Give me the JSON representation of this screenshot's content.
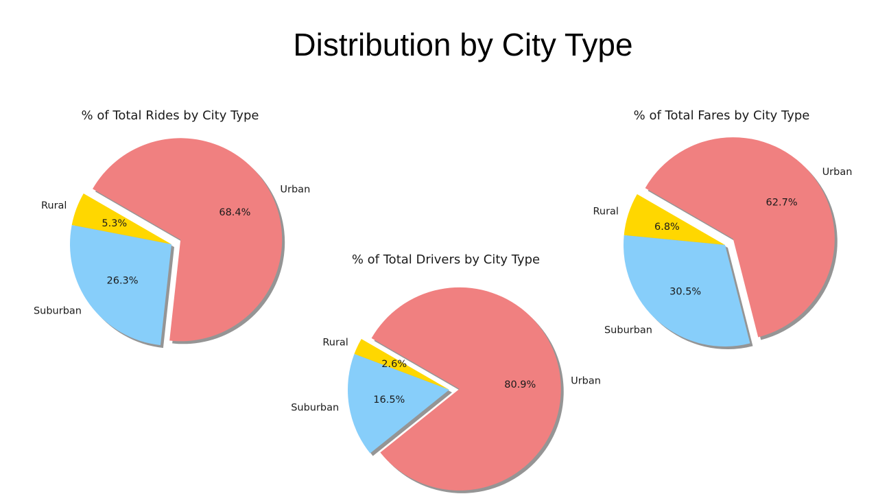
{
  "slide": {
    "title": "Distribution by City Type"
  },
  "colors": {
    "Urban": "#f08080",
    "Suburban": "#87cefa",
    "Rural": "#ffd700",
    "shadow": "#8a8a8a",
    "text": "#1a1a1a"
  },
  "chart_data": [
    {
      "type": "pie",
      "title": "% of Total Rides by City Type",
      "labels": [
        "Rural",
        "Suburban",
        "Urban"
      ],
      "values": [
        5.3,
        26.3,
        68.4
      ],
      "percent_labels": [
        "5.3%",
        "26.3%",
        "68.4%"
      ],
      "exploded": "Urban",
      "shadow": true
    },
    {
      "type": "pie",
      "title": "% of Total Drivers by City Type",
      "labels": [
        "Rural",
        "Suburban",
        "Urban"
      ],
      "values": [
        2.6,
        16.5,
        80.9
      ],
      "percent_labels": [
        "2.6%",
        "16.5%",
        "80.9%"
      ],
      "exploded": "Urban",
      "shadow": true
    },
    {
      "type": "pie",
      "title": "% of Total Fares by City Type",
      "labels": [
        "Rural",
        "Suburban",
        "Urban"
      ],
      "values": [
        6.8,
        30.5,
        62.7
      ],
      "percent_labels": [
        "6.8%",
        "30.5%",
        "62.7%"
      ],
      "exploded": "Urban",
      "shadow": true
    }
  ]
}
